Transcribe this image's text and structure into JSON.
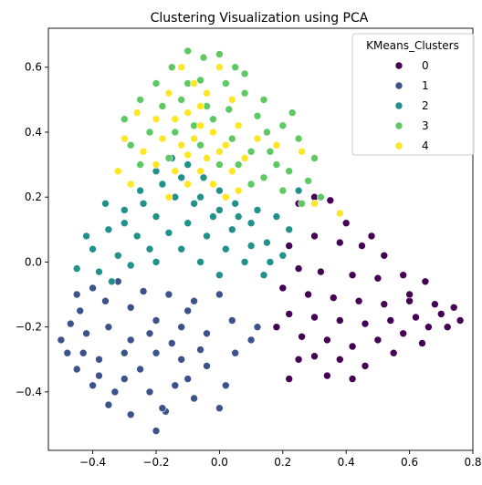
{
  "chart_data": {
    "type": "scatter",
    "title": "Clustering Visualization using PCA",
    "xlabel": "",
    "ylabel": "",
    "xlim": [
      -0.54,
      0.8
    ],
    "ylim": [
      -0.58,
      0.72
    ],
    "xticks": [
      -0.4,
      -0.2,
      0.0,
      0.2,
      0.4,
      0.6,
      0.8
    ],
    "xtick_labels": [
      "−0.4",
      "−0.2",
      "0.0",
      "0.2",
      "0.4",
      "0.6",
      "0.8"
    ],
    "yticks": [
      -0.4,
      -0.2,
      0.0,
      0.2,
      0.4,
      0.6
    ],
    "ytick_labels": [
      "−0.4",
      "−0.2",
      "0.0",
      "0.2",
      "0.4",
      "0.6"
    ],
    "grid": false,
    "legend": {
      "title": "KMeans_Clusters",
      "placement": "top-right"
    },
    "series": [
      {
        "name": "0",
        "color": "#440154",
        "points": [
          [
            0.25,
            0.18
          ],
          [
            0.3,
            0.2
          ],
          [
            0.35,
            0.19
          ],
          [
            0.4,
            0.12
          ],
          [
            0.22,
            0.05
          ],
          [
            0.3,
            0.08
          ],
          [
            0.38,
            0.06
          ],
          [
            0.45,
            0.05
          ],
          [
            0.52,
            0.02
          ],
          [
            0.25,
            -0.02
          ],
          [
            0.32,
            -0.03
          ],
          [
            0.42,
            -0.04
          ],
          [
            0.5,
            -0.05
          ],
          [
            0.58,
            -0.04
          ],
          [
            0.65,
            -0.06
          ],
          [
            0.2,
            -0.08
          ],
          [
            0.28,
            -0.1
          ],
          [
            0.36,
            -0.11
          ],
          [
            0.44,
            -0.12
          ],
          [
            0.52,
            -0.13
          ],
          [
            0.6,
            -0.12
          ],
          [
            0.68,
            -0.13
          ],
          [
            0.74,
            -0.14
          ],
          [
            0.22,
            -0.16
          ],
          [
            0.3,
            -0.17
          ],
          [
            0.38,
            -0.18
          ],
          [
            0.46,
            -0.19
          ],
          [
            0.54,
            -0.18
          ],
          [
            0.62,
            -0.17
          ],
          [
            0.7,
            -0.16
          ],
          [
            0.76,
            -0.18
          ],
          [
            0.26,
            -0.23
          ],
          [
            0.34,
            -0.24
          ],
          [
            0.42,
            -0.26
          ],
          [
            0.5,
            -0.24
          ],
          [
            0.58,
            -0.22
          ],
          [
            0.66,
            -0.2
          ],
          [
            0.3,
            -0.29
          ],
          [
            0.38,
            -0.3
          ],
          [
            0.46,
            -0.32
          ],
          [
            0.34,
            -0.35
          ],
          [
            0.42,
            -0.36
          ],
          [
            0.22,
            -0.36
          ],
          [
            0.18,
            -0.2
          ],
          [
            0.25,
            -0.3
          ],
          [
            0.55,
            -0.28
          ],
          [
            0.64,
            -0.25
          ],
          [
            0.72,
            -0.2
          ],
          [
            0.6,
            -0.1
          ],
          [
            0.48,
            0.08
          ]
        ]
      },
      {
        "name": "1",
        "color": "#3b528b",
        "points": [
          [
            -0.2,
            -0.52
          ],
          [
            -0.17,
            -0.46
          ],
          [
            -0.28,
            -0.47
          ],
          [
            -0.35,
            -0.44
          ],
          [
            -0.4,
            -0.38
          ],
          [
            -0.45,
            -0.33
          ],
          [
            -0.48,
            -0.28
          ],
          [
            -0.38,
            -0.3
          ],
          [
            -0.3,
            -0.36
          ],
          [
            -0.22,
            -0.4
          ],
          [
            -0.14,
            -0.38
          ],
          [
            -0.08,
            -0.42
          ],
          [
            0.02,
            -0.38
          ],
          [
            -0.42,
            -0.22
          ],
          [
            -0.35,
            -0.2
          ],
          [
            -0.28,
            -0.24
          ],
          [
            -0.2,
            -0.28
          ],
          [
            -0.12,
            -0.3
          ],
          [
            -0.04,
            -0.32
          ],
          [
            0.05,
            -0.28
          ],
          [
            -0.44,
            -0.15
          ],
          [
            -0.36,
            -0.12
          ],
          [
            -0.28,
            -0.14
          ],
          [
            -0.2,
            -0.18
          ],
          [
            -0.12,
            -0.2
          ],
          [
            -0.04,
            -0.22
          ],
          [
            0.04,
            -0.18
          ],
          [
            0.1,
            -0.24
          ],
          [
            -0.4,
            -0.08
          ],
          [
            -0.32,
            -0.06
          ],
          [
            -0.24,
            -0.09
          ],
          [
            -0.16,
            -0.1
          ],
          [
            -0.08,
            -0.12
          ],
          [
            0.0,
            -0.1
          ],
          [
            -0.5,
            -0.24
          ],
          [
            -0.45,
            -0.1
          ],
          [
            -0.25,
            -0.33
          ],
          [
            -0.33,
            -0.4
          ],
          [
            -0.1,
            -0.36
          ],
          [
            0.0,
            -0.45
          ],
          [
            -0.15,
            -0.25
          ],
          [
            -0.06,
            -0.27
          ],
          [
            -0.38,
            -0.35
          ],
          [
            -0.43,
            -0.28
          ],
          [
            -0.47,
            -0.19
          ],
          [
            -0.18,
            -0.45
          ],
          [
            -0.3,
            -0.28
          ],
          [
            -0.22,
            -0.22
          ],
          [
            -0.1,
            -0.15
          ],
          [
            0.12,
            -0.2
          ]
        ]
      },
      {
        "name": "2",
        "color": "#21918c",
        "points": [
          [
            -0.45,
            -0.02
          ],
          [
            -0.4,
            0.04
          ],
          [
            -0.35,
            0.1
          ],
          [
            -0.3,
            0.16
          ],
          [
            -0.25,
            0.22
          ],
          [
            -0.2,
            0.28
          ],
          [
            -0.15,
            0.32
          ],
          [
            -0.1,
            0.3
          ],
          [
            -0.05,
            0.26
          ],
          [
            0.0,
            0.22
          ],
          [
            0.05,
            0.18
          ],
          [
            0.1,
            0.12
          ],
          [
            0.15,
            0.06
          ],
          [
            0.2,
            0.02
          ],
          [
            -0.38,
            -0.03
          ],
          [
            -0.32,
            0.02
          ],
          [
            -0.26,
            0.08
          ],
          [
            -0.2,
            0.14
          ],
          [
            -0.14,
            0.2
          ],
          [
            -0.08,
            0.18
          ],
          [
            -0.02,
            0.14
          ],
          [
            0.04,
            0.1
          ],
          [
            0.1,
            0.05
          ],
          [
            0.16,
            0.0
          ],
          [
            -0.34,
            -0.06
          ],
          [
            -0.28,
            -0.01
          ],
          [
            -0.22,
            0.04
          ],
          [
            -0.16,
            0.09
          ],
          [
            -0.1,
            0.12
          ],
          [
            -0.04,
            0.08
          ],
          [
            0.02,
            0.04
          ],
          [
            0.08,
            0.0
          ],
          [
            0.14,
            -0.04
          ],
          [
            -0.3,
            0.12
          ],
          [
            -0.24,
            0.18
          ],
          [
            -0.18,
            0.24
          ],
          [
            -0.12,
            0.26
          ],
          [
            -0.06,
            0.2
          ],
          [
            0.0,
            0.16
          ],
          [
            0.06,
            0.14
          ],
          [
            0.12,
            0.16
          ],
          [
            0.18,
            0.14
          ],
          [
            -0.42,
            0.08
          ],
          [
            -0.36,
            0.18
          ],
          [
            0.22,
            0.1
          ],
          [
            0.25,
            0.22
          ],
          [
            -0.2,
            0.0
          ],
          [
            -0.12,
            0.04
          ],
          [
            -0.06,
            0.0
          ],
          [
            0.0,
            -0.04
          ]
        ]
      },
      {
        "name": "3",
        "color": "#5ec962",
        "points": [
          [
            -0.1,
            0.65
          ],
          [
            -0.05,
            0.63
          ],
          [
            0.0,
            0.64
          ],
          [
            0.05,
            0.6
          ],
          [
            -0.15,
            0.6
          ],
          [
            -0.2,
            0.55
          ],
          [
            -0.25,
            0.5
          ],
          [
            -0.3,
            0.44
          ],
          [
            -0.18,
            0.48
          ],
          [
            -0.12,
            0.5
          ],
          [
            -0.06,
            0.56
          ],
          [
            0.02,
            0.55
          ],
          [
            0.08,
            0.52
          ],
          [
            0.12,
            0.45
          ],
          [
            0.15,
            0.4
          ],
          [
            0.2,
            0.42
          ],
          [
            0.25,
            0.38
          ],
          [
            0.3,
            0.32
          ],
          [
            0.18,
            0.3
          ],
          [
            0.1,
            0.34
          ],
          [
            0.04,
            0.38
          ],
          [
            -0.02,
            0.44
          ],
          [
            -0.08,
            0.42
          ],
          [
            -0.14,
            0.4
          ],
          [
            -0.22,
            0.4
          ],
          [
            -0.28,
            0.36
          ],
          [
            -0.25,
            0.3
          ],
          [
            -0.16,
            0.32
          ],
          [
            -0.06,
            0.36
          ],
          [
            0.06,
            0.3
          ],
          [
            0.14,
            0.26
          ],
          [
            0.22,
            0.28
          ],
          [
            0.28,
            0.25
          ],
          [
            0.32,
            0.2
          ],
          [
            0.26,
            0.18
          ],
          [
            0.2,
            0.22
          ],
          [
            0.1,
            0.24
          ],
          [
            0.0,
            0.3
          ],
          [
            -0.1,
            0.55
          ],
          [
            0.08,
            0.58
          ],
          [
            0.14,
            0.5
          ],
          [
            0.23,
            0.46
          ],
          [
            -0.04,
            0.48
          ],
          [
            0.16,
            0.34
          ],
          [
            0.03,
            0.47
          ]
        ]
      },
      {
        "name": "4",
        "color": "#fde725",
        "points": [
          [
            -0.12,
            0.6
          ],
          [
            -0.08,
            0.55
          ],
          [
            -0.04,
            0.52
          ],
          [
            0.0,
            0.6
          ],
          [
            -0.16,
            0.52
          ],
          [
            -0.2,
            0.44
          ],
          [
            -0.14,
            0.44
          ],
          [
            -0.1,
            0.46
          ],
          [
            -0.06,
            0.48
          ],
          [
            -0.02,
            0.4
          ],
          [
            0.02,
            0.36
          ],
          [
            0.06,
            0.42
          ],
          [
            -0.18,
            0.38
          ],
          [
            -0.12,
            0.36
          ],
          [
            -0.08,
            0.38
          ],
          [
            -0.04,
            0.32
          ],
          [
            0.0,
            0.34
          ],
          [
            0.04,
            0.28
          ],
          [
            0.08,
            0.32
          ],
          [
            -0.24,
            0.34
          ],
          [
            -0.2,
            0.3
          ],
          [
            -0.14,
            0.28
          ],
          [
            -0.1,
            0.24
          ],
          [
            -0.06,
            0.28
          ],
          [
            -0.02,
            0.24
          ],
          [
            0.02,
            0.2
          ],
          [
            0.06,
            0.22
          ],
          [
            -0.32,
            0.28
          ],
          [
            -0.28,
            0.24
          ],
          [
            -0.3,
            0.38
          ],
          [
            -0.26,
            0.46
          ],
          [
            0.12,
            0.38
          ],
          [
            0.18,
            0.36
          ],
          [
            0.26,
            0.34
          ],
          [
            0.3,
            0.18
          ],
          [
            0.38,
            0.15
          ],
          [
            -0.16,
            0.2
          ],
          [
            -0.06,
            0.42
          ],
          [
            0.04,
            0.5
          ],
          [
            -0.1,
            0.33
          ]
        ]
      }
    ]
  }
}
